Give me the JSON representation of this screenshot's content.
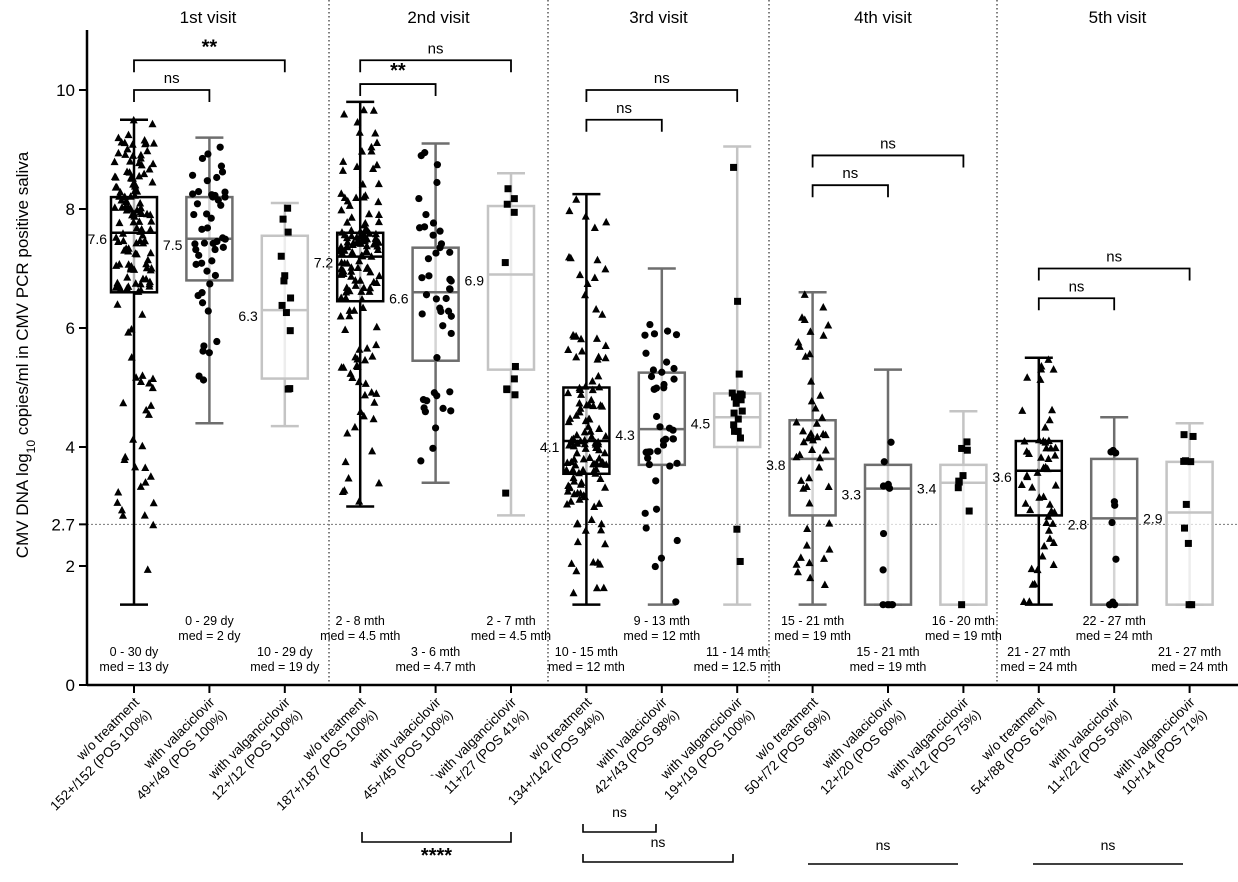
{
  "chart_data": {
    "type": "box",
    "ylabel_prefix": "CMV DNA log",
    "ylabel_sub": "10",
    "ylabel_suffix": " copies/ml in CMV PCR positive saliva",
    "ylim": [
      0,
      11
    ],
    "yticks": [
      0,
      2,
      2.7,
      4,
      6,
      8,
      10
    ],
    "threshold": 2.7,
    "panels": [
      "1st visit",
      "2nd visit",
      "3rd visit",
      "4th visit",
      "5th visit"
    ],
    "groups": [
      {
        "label1": "w/o treatment",
        "label2": "152+/152 (POS 100%)",
        "color": "#000000",
        "marker": "triangle",
        "n": 152,
        "min": 1.35,
        "q1": 6.6,
        "median": 7.6,
        "q3": 8.2,
        "max": 9.5,
        "median_label": "7.6",
        "range": "0 - 30 dy",
        "med": "med = 13 dy",
        "label_pos": "low"
      },
      {
        "label1": "with valaciclovir",
        "label2": "49+/49 (POS 100%)",
        "color": "#6e6e6e",
        "marker": "circle",
        "n": 49,
        "min": 4.4,
        "q1": 6.8,
        "median": 7.5,
        "q3": 8.2,
        "max": 9.2,
        "median_label": "7.5",
        "range": "0 - 29 dy",
        "med": "med = 2 dy",
        "label_pos": "high"
      },
      {
        "label1": "with valganciclovir",
        "label2": "12+/12 (POS 100%)",
        "color": "#c4c4c4",
        "marker": "square",
        "n": 12,
        "min": 4.35,
        "q1": 5.15,
        "median": 6.3,
        "q3": 7.55,
        "max": 8.1,
        "median_label": "6.3",
        "range": "10 - 29 dy",
        "med": "med = 19 dy",
        "label_pos": "low"
      },
      {
        "label1": "w/o treatment",
        "label2": "187+/187 (POS 100%)",
        "color": "#000000",
        "marker": "triangle",
        "n": 187,
        "min": 3.0,
        "q1": 6.45,
        "median": 7.2,
        "q3": 7.6,
        "max": 9.8,
        "median_label": "7.2",
        "range": "2 - 8 mth",
        "med": "med = 4.5 mth",
        "label_pos": "high"
      },
      {
        "label1": "with valaciclovir",
        "label2": "45+/45 (POS 100%)",
        "color": "#6e6e6e",
        "marker": "circle",
        "n": 45,
        "min": 3.4,
        "q1": 5.45,
        "median": 6.6,
        "q3": 7.35,
        "max": 9.1,
        "median_label": "6.6",
        "range": "3 - 6 mth",
        "med": "med = 4.7 mth",
        "label_pos": "low"
      },
      {
        "label1": "`with valganciclovir",
        "label2": "11+/27 (POS 41%)",
        "color": "#c4c4c4",
        "marker": "square",
        "n": 11,
        "min": 2.85,
        "q1": 5.3,
        "median": 6.9,
        "q3": 8.05,
        "max": 8.6,
        "median_label": "6.9",
        "range": "2 - 7 mth",
        "med": "med = 4.5 mth",
        "label_pos": "high"
      },
      {
        "label1": "w/o treatment",
        "label2": "134+/142 (POS 94%)",
        "color": "#000000",
        "marker": "triangle",
        "n": 134,
        "min": 1.35,
        "q1": 3.55,
        "median": 4.1,
        "q3": 5.0,
        "max": 8.25,
        "median_label": "4.1",
        "range": "10 - 15 mth",
        "med": "med = 12 mth",
        "label_pos": "low"
      },
      {
        "label1": "with valaciclovir",
        "label2": "42+/43 (POS 98%)",
        "color": "#6e6e6e",
        "marker": "circle",
        "n": 42,
        "min": 1.35,
        "q1": 3.7,
        "median": 4.3,
        "q3": 5.25,
        "max": 7.0,
        "median_label": "4.3",
        "range": "9 - 13 mth",
        "med": "med = 12 mth",
        "label_pos": "high"
      },
      {
        "label1": "with valganciclovir",
        "label2": "19+/19 (POS 100%)",
        "color": "#c4c4c4",
        "marker": "square",
        "n": 19,
        "min": 1.35,
        "q1": 4.0,
        "median": 4.5,
        "q3": 4.9,
        "max": 9.05,
        "median_label": "4.5",
        "range": "11 - 14 mth",
        "med": "med = 12.5 mth",
        "label_pos": "low"
      },
      {
        "label1": "w/o treatment",
        "label2": "50+/72 (POS 69%)",
        "color": "#6e6e6e",
        "marker": "triangle",
        "n": 50,
        "min": 1.35,
        "q1": 2.85,
        "median": 3.8,
        "q3": 4.45,
        "max": 6.6,
        "median_label": "3.8",
        "range": "15 - 21 mth",
        "med": "med = 19 mth",
        "label_pos": "high"
      },
      {
        "label1": "with valaciclovir",
        "label2": "12+/20 (POS 60%)",
        "color": "#6e6e6e",
        "marker": "circle",
        "n": 12,
        "min": 1.35,
        "q1": 1.35,
        "median": 3.3,
        "q3": 3.7,
        "max": 5.3,
        "median_label": "3.3",
        "range": "15 - 21 mth",
        "med": "med = 19 mth",
        "label_pos": "low"
      },
      {
        "label1": "with valganciclovir",
        "label2": "9+/12 (POS 75%)",
        "color": "#c4c4c4",
        "marker": "square",
        "n": 9,
        "min": 1.35,
        "q1": 1.35,
        "median": 3.4,
        "q3": 3.7,
        "max": 4.6,
        "median_label": "3.4",
        "range": "16 - 20 mth",
        "med": "med = 19 mth",
        "label_pos": "high"
      },
      {
        "label1": "w/o treatment",
        "label2": "54+/88 (POS 61%)",
        "color": "#000000",
        "marker": "triangle",
        "n": 54,
        "min": 1.35,
        "q1": 2.85,
        "median": 3.6,
        "q3": 4.1,
        "max": 5.5,
        "median_label": "3.6",
        "range": "21 - 27 mth",
        "med": "med = 24 mth",
        "label_pos": "low"
      },
      {
        "label1": "with valaciclovir",
        "label2": "11+/22 (POS 50%)",
        "color": "#6e6e6e",
        "marker": "circle",
        "n": 11,
        "min": 1.35,
        "q1": 1.35,
        "median": 2.8,
        "q3": 3.8,
        "max": 4.5,
        "median_label": "2.8",
        "range": "22 - 27 mth",
        "med": "med = 24 mth",
        "label_pos": "high"
      },
      {
        "label1": "with valganciclovir",
        "label2": "10+/14 (POS 71%)",
        "color": "#c4c4c4",
        "marker": "square",
        "n": 10,
        "min": 1.35,
        "q1": 1.35,
        "median": 2.9,
        "q3": 3.75,
        "max": 4.4,
        "median_label": "2.9",
        "range": "21 - 27 mth",
        "med": "med = 24 mth",
        "label_pos": "low"
      }
    ],
    "brackets_top": [
      {
        "from": 0,
        "to": 1,
        "y": 10.0,
        "label": "ns",
        "bold": false
      },
      {
        "from": 0,
        "to": 2,
        "y": 10.5,
        "label": "**",
        "bold": true
      },
      {
        "from": 3,
        "to": 4,
        "y": 10.1,
        "label": "**",
        "bold": true
      },
      {
        "from": 3,
        "to": 5,
        "y": 10.5,
        "label": "ns",
        "bold": false
      },
      {
        "from": 6,
        "to": 7,
        "y": 9.5,
        "label": "ns",
        "bold": false
      },
      {
        "from": 6,
        "to": 8,
        "y": 10.0,
        "label": "ns",
        "bold": false
      },
      {
        "from": 9,
        "to": 10,
        "y": 8.4,
        "label": "ns",
        "bold": false
      },
      {
        "from": 9,
        "to": 11,
        "y": 8.9,
        "label": "ns",
        "bold": false
      },
      {
        "from": 12,
        "to": 13,
        "y": 6.5,
        "label": "ns",
        "bold": false
      },
      {
        "from": 12,
        "to": 14,
        "y": 7.0,
        "label": "ns",
        "bold": false
      }
    ],
    "brackets_bottom": [
      {
        "from": 1,
        "to": 4,
        "row": 1,
        "label": "****",
        "bold": true,
        "ticks": true
      },
      {
        "from": 1,
        "to": 7,
        "row": 0,
        "label": "ns",
        "bold": false,
        "ticks": true
      },
      {
        "from": 1,
        "to": 7,
        "row": 2,
        "label": "ns",
        "bold": false,
        "ticks": true
      },
      {
        "from": 1,
        "to": 10,
        "row": 2,
        "label": "ns",
        "bold": false,
        "ticks": false
      },
      {
        "from": 1,
        "to": 13,
        "row": 2,
        "label": "ns",
        "bold": false,
        "ticks": false
      }
    ]
  }
}
